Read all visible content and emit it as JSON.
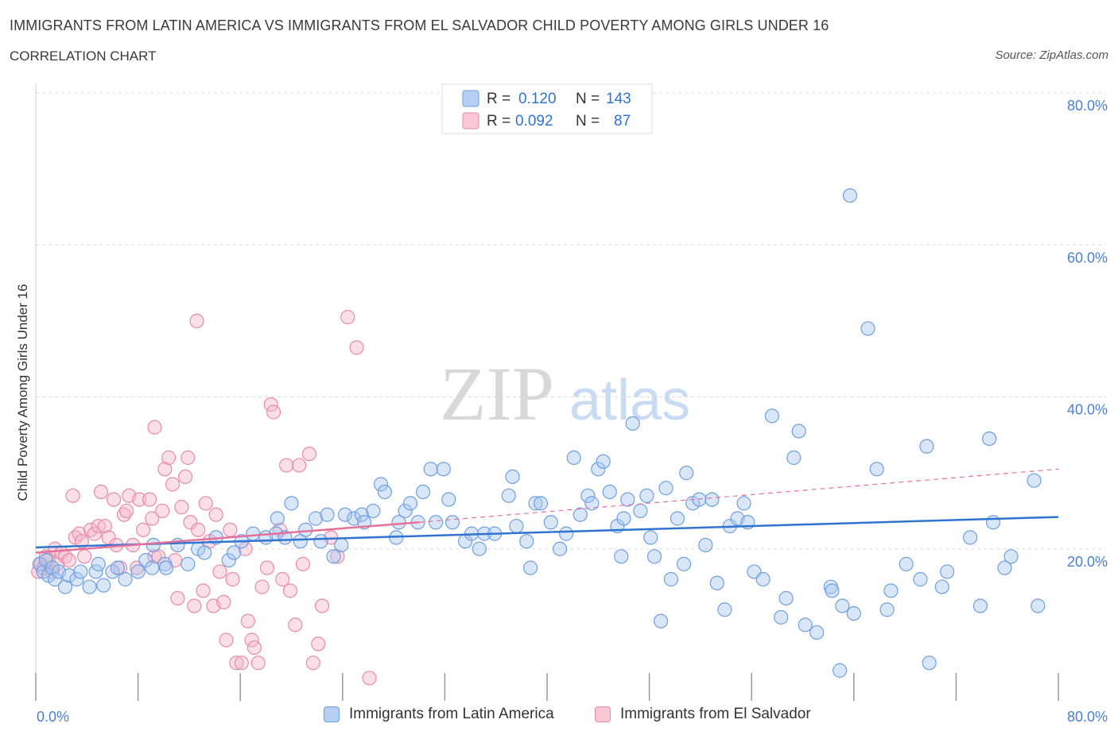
{
  "header": {
    "title": "IMMIGRANTS FROM LATIN AMERICA VS IMMIGRANTS FROM EL SALVADOR CHILD POVERTY AMONG GIRLS UNDER 16",
    "subtitle": "CORRELATION CHART",
    "source": "Source: ZipAtlas.com"
  },
  "watermark": {
    "zip": "ZIP",
    "atlas": "atlas"
  },
  "colors": {
    "blue_fill": "#a9c8f0",
    "blue_stroke": "#6f9fde",
    "blue_line": "#2f74d0",
    "pink_fill": "#f5b8c9",
    "pink_stroke": "#e98aa8",
    "pink_line": "#e5709a",
    "axis_text": "#4a7fd4",
    "grid": "#d9d9d9"
  },
  "stats_legend": [
    {
      "r_label": "R =",
      "r_value": "0.120",
      "n_label": "N =",
      "n_value": "143",
      "color": "blue"
    },
    {
      "r_label": "R =",
      "r_value": "0.092",
      "n_label": "N =",
      "n_value": "87",
      "color": "pink"
    }
  ],
  "chart_data": {
    "type": "scatter",
    "title": "IMMIGRANTS FROM LATIN AMERICA VS IMMIGRANTS FROM EL SALVADOR CHILD POVERTY AMONG GIRLS UNDER 16",
    "xlabel": "",
    "ylabel": "Child Poverty Among Girls Under 16",
    "xlim": [
      0,
      80
    ],
    "ylim": [
      0,
      80
    ],
    "x_tick_labels": [
      "0.0%",
      "80.0%"
    ],
    "y_tick_labels": [
      "20.0%",
      "40.0%",
      "60.0%",
      "80.0%"
    ],
    "y_ticks": [
      20,
      40,
      60,
      80
    ],
    "grid": true,
    "legend_position": "bottom",
    "series": [
      {
        "name": "Immigrants from Latin America",
        "color": "blue",
        "trend": {
          "x0": 0,
          "y0": 20.2,
          "x1": 80,
          "y1": 24.2
        },
        "points": [
          [
            0.3,
            18
          ],
          [
            0.6,
            17
          ],
          [
            0.8,
            18.5
          ],
          [
            1,
            16.5
          ],
          [
            1.3,
            17.5
          ],
          [
            1.5,
            16
          ],
          [
            1.8,
            17
          ],
          [
            2.3,
            15
          ],
          [
            2.6,
            16.5
          ],
          [
            3.2,
            16
          ],
          [
            3.5,
            17
          ],
          [
            4.2,
            15
          ],
          [
            4.7,
            17
          ],
          [
            4.9,
            18
          ],
          [
            5.3,
            15.2
          ],
          [
            6,
            17
          ],
          [
            6.4,
            17.5
          ],
          [
            7,
            16
          ],
          [
            8,
            17
          ],
          [
            8.6,
            18.5
          ],
          [
            9.1,
            17.5
          ],
          [
            9.2,
            20.5
          ],
          [
            10.1,
            18
          ],
          [
            10.2,
            17.5
          ],
          [
            11.1,
            20.5
          ],
          [
            11.9,
            18
          ],
          [
            12.7,
            20
          ],
          [
            13.2,
            19.5
          ],
          [
            14.1,
            21.5
          ],
          [
            15.1,
            18.5
          ],
          [
            15.5,
            19.5
          ],
          [
            16.1,
            21
          ],
          [
            17,
            22
          ],
          [
            18,
            21.5
          ],
          [
            18.8,
            22
          ],
          [
            18.9,
            24
          ],
          [
            19.5,
            21.5
          ],
          [
            20,
            26
          ],
          [
            20.7,
            21
          ],
          [
            21.1,
            22.5
          ],
          [
            21.9,
            24
          ],
          [
            22.3,
            21
          ],
          [
            22.8,
            24.5
          ],
          [
            23.3,
            19
          ],
          [
            23.9,
            20.5
          ],
          [
            24.2,
            24.5
          ],
          [
            24.9,
            24
          ],
          [
            25.5,
            24.5
          ],
          [
            25.7,
            23.5
          ],
          [
            26.4,
            25
          ],
          [
            27,
            28.5
          ],
          [
            27.3,
            27.5
          ],
          [
            28.2,
            21.5
          ],
          [
            28.4,
            23.5
          ],
          [
            28.9,
            25
          ],
          [
            29.3,
            26
          ],
          [
            29.9,
            23.5
          ],
          [
            30.3,
            27.5
          ],
          [
            30.9,
            30.5
          ],
          [
            31.3,
            23.5
          ],
          [
            31.9,
            30.5
          ],
          [
            32.3,
            26.5
          ],
          [
            32.6,
            23.5
          ],
          [
            33.6,
            21
          ],
          [
            34.1,
            22
          ],
          [
            34.7,
            20
          ],
          [
            35.1,
            22
          ],
          [
            35.9,
            22
          ],
          [
            37,
            27
          ],
          [
            37.3,
            29.5
          ],
          [
            37.6,
            23
          ],
          [
            38.4,
            21
          ],
          [
            38.7,
            17.5
          ],
          [
            39.1,
            26
          ],
          [
            39.5,
            26
          ],
          [
            40.3,
            23.5
          ],
          [
            41,
            20
          ],
          [
            41.5,
            22
          ],
          [
            42.1,
            32
          ],
          [
            42.6,
            24.5
          ],
          [
            43.2,
            27
          ],
          [
            43.5,
            26
          ],
          [
            44,
            30.5
          ],
          [
            44.4,
            31.5
          ],
          [
            44.9,
            27.5
          ],
          [
            45.5,
            23
          ],
          [
            45.8,
            19
          ],
          [
            46,
            24
          ],
          [
            46.3,
            26.5
          ],
          [
            46.7,
            36.5
          ],
          [
            47.3,
            25
          ],
          [
            47.8,
            27
          ],
          [
            48.1,
            21.5
          ],
          [
            48.4,
            19
          ],
          [
            48.9,
            10.5
          ],
          [
            49.3,
            28
          ],
          [
            49.7,
            16
          ],
          [
            50.2,
            24
          ],
          [
            50.7,
            18
          ],
          [
            50.9,
            30
          ],
          [
            51.4,
            26
          ],
          [
            51.9,
            26.5
          ],
          [
            52.4,
            20.5
          ],
          [
            52.9,
            26.5
          ],
          [
            53.3,
            15.5
          ],
          [
            53.9,
            12
          ],
          [
            54.3,
            23
          ],
          [
            54.9,
            24
          ],
          [
            55.4,
            26
          ],
          [
            55.7,
            23.5
          ],
          [
            56.2,
            17
          ],
          [
            56.9,
            16
          ],
          [
            57.6,
            37.5
          ],
          [
            58.3,
            11
          ],
          [
            58.7,
            13.5
          ],
          [
            59.3,
            32
          ],
          [
            59.7,
            35.5
          ],
          [
            60.2,
            10
          ],
          [
            61.1,
            9
          ],
          [
            62.2,
            15
          ],
          [
            62.3,
            14.5
          ],
          [
            63.1,
            12.5
          ],
          [
            62.9,
            4
          ],
          [
            63.7,
            66.5
          ],
          [
            64,
            11.5
          ],
          [
            65.1,
            49
          ],
          [
            65.8,
            30.5
          ],
          [
            66.6,
            12
          ],
          [
            66.9,
            14.5
          ],
          [
            68.1,
            18
          ],
          [
            69.2,
            16
          ],
          [
            69.7,
            33.5
          ],
          [
            69.9,
            5
          ],
          [
            70.9,
            15
          ],
          [
            71.3,
            17
          ],
          [
            73.1,
            21.5
          ],
          [
            73.9,
            12.5
          ],
          [
            74.6,
            34.5
          ],
          [
            74.9,
            23.5
          ],
          [
            75.8,
            17.5
          ],
          [
            76.3,
            19
          ],
          [
            78.4,
            12.5
          ],
          [
            78.1,
            29
          ]
        ]
      },
      {
        "name": "Immigrants from El Salvador",
        "color": "pink",
        "trend": {
          "x0": 0,
          "y0": 19.5,
          "x1": 30,
          "y1": 23.5,
          "dash_x1": 80,
          "dash_y1": 30.5
        },
        "points": [
          [
            0.2,
            17
          ],
          [
            0.4,
            18
          ],
          [
            0.6,
            17.5
          ],
          [
            0.8,
            19
          ],
          [
            1,
            18.5
          ],
          [
            1.3,
            17
          ],
          [
            1.5,
            20
          ],
          [
            1.7,
            18
          ],
          [
            2,
            19.5
          ],
          [
            2.3,
            19
          ],
          [
            2.6,
            18.5
          ],
          [
            2.9,
            27
          ],
          [
            3.1,
            21.5
          ],
          [
            3.4,
            22
          ],
          [
            3.6,
            21
          ],
          [
            3.8,
            19
          ],
          [
            4.3,
            22.5
          ],
          [
            4.6,
            22
          ],
          [
            4.9,
            23
          ],
          [
            5.1,
            27.5
          ],
          [
            5.4,
            23
          ],
          [
            5.7,
            21.5
          ],
          [
            6.1,
            26.5
          ],
          [
            6.3,
            20.5
          ],
          [
            6.6,
            17.5
          ],
          [
            6.9,
            24.5
          ],
          [
            7.1,
            25
          ],
          [
            7.3,
            27
          ],
          [
            7.6,
            20.5
          ],
          [
            7.9,
            17.5
          ],
          [
            8.1,
            26.5
          ],
          [
            8.4,
            22.5
          ],
          [
            8.9,
            26.5
          ],
          [
            9.1,
            24
          ],
          [
            9.3,
            19
          ],
          [
            9.6,
            19
          ],
          [
            9.9,
            25
          ],
          [
            10.1,
            30.5
          ],
          [
            10.4,
            32
          ],
          [
            10.7,
            28.5
          ],
          [
            10.9,
            18.5
          ],
          [
            11.1,
            13.5
          ],
          [
            11.4,
            25.5
          ],
          [
            11.7,
            29.5
          ],
          [
            11.9,
            32
          ],
          [
            12.1,
            23.5
          ],
          [
            12.4,
            12.5
          ],
          [
            12.7,
            22.5
          ],
          [
            13.1,
            14.5
          ],
          [
            13.3,
            26
          ],
          [
            13.6,
            21
          ],
          [
            13.9,
            12.5
          ],
          [
            14.1,
            24.5
          ],
          [
            14.4,
            17
          ],
          [
            14.7,
            13
          ],
          [
            14.9,
            8
          ],
          [
            15.2,
            22.5
          ],
          [
            15.4,
            16
          ],
          [
            15.7,
            5
          ],
          [
            16.1,
            5
          ],
          [
            16.4,
            20
          ],
          [
            16.6,
            10.5
          ],
          [
            16.9,
            8
          ],
          [
            17.1,
            7
          ],
          [
            17.4,
            5
          ],
          [
            17.7,
            15
          ],
          [
            18.1,
            17.5
          ],
          [
            18.4,
            39
          ],
          [
            18.6,
            38
          ],
          [
            19.1,
            22.5
          ],
          [
            19.6,
            31
          ],
          [
            19.9,
            14.5
          ],
          [
            20.3,
            10
          ],
          [
            20.6,
            31
          ],
          [
            20.9,
            18
          ],
          [
            21.4,
            32.5
          ],
          [
            21.7,
            5
          ],
          [
            22.1,
            7.5
          ],
          [
            22.4,
            12.5
          ],
          [
            12.6,
            50
          ],
          [
            23.1,
            21.5
          ],
          [
            23.6,
            19
          ],
          [
            24.4,
            50.5
          ],
          [
            25.1,
            46.5
          ],
          [
            26.1,
            3
          ],
          [
            9.3,
            36
          ],
          [
            19.3,
            16
          ]
        ]
      }
    ]
  },
  "bottom_legend": [
    {
      "label": "Immigrants from Latin America",
      "color": "blue"
    },
    {
      "label": "Immigrants from El Salvador",
      "color": "pink"
    }
  ]
}
